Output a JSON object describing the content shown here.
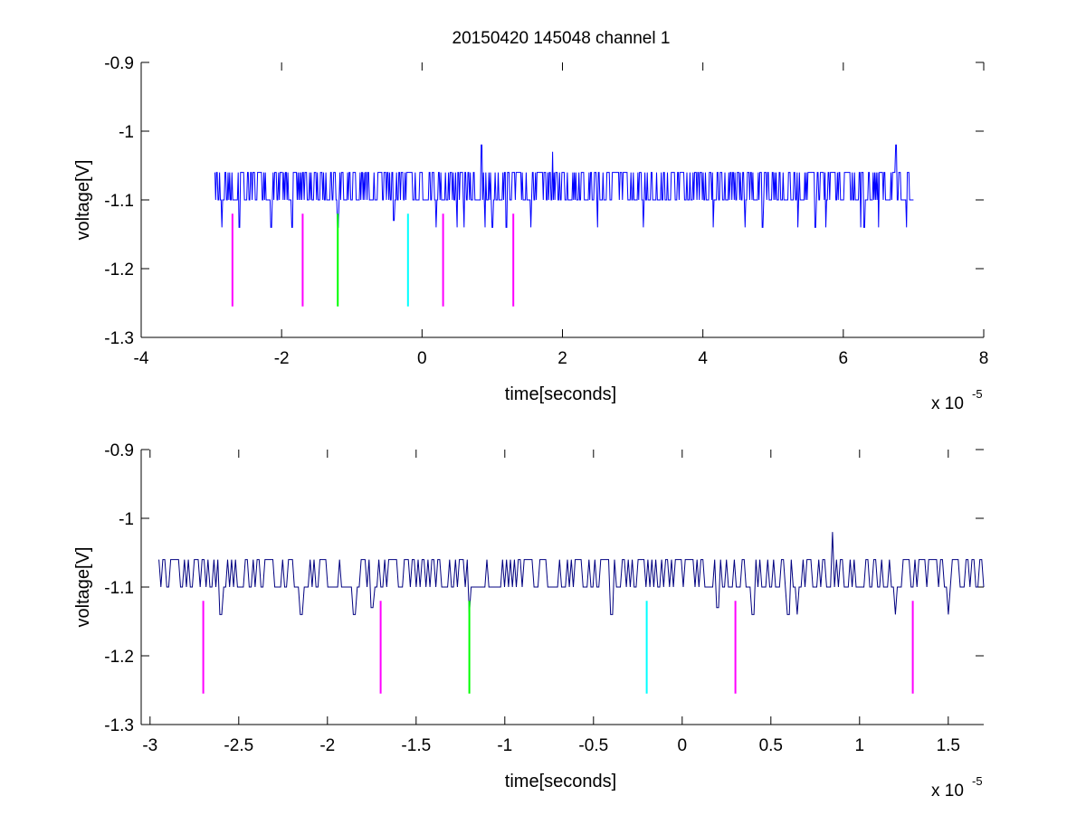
{
  "figure": {
    "title": "20150420 145048 channel 1"
  },
  "chart_data": [
    {
      "type": "line",
      "xlabel": "time[seconds]",
      "ylabel": "voltage[V]",
      "x_scale_label": "x 10",
      "x_scale_exponent": "-5",
      "xlim": [
        -4,
        8
      ],
      "ylim": [
        -1.3,
        -0.9
      ],
      "xticks": [
        -4,
        -2,
        0,
        2,
        4,
        6,
        8
      ],
      "xtick_labels": [
        "-4",
        "-2",
        "0",
        "2",
        "4",
        "6",
        "8"
      ],
      "yticks": [
        -1.3,
        -1.2,
        -1.1,
        -1.0,
        -0.9
      ],
      "ytick_labels": [
        "-1.3",
        "-1.2",
        "-1.1",
        "-1",
        "-0.9"
      ],
      "series": [
        {
          "color": "#0000ff",
          "x_range": [
            -2.95,
            7.0
          ],
          "baseline_levels": [
            -1.06,
            -1.1
          ],
          "dips": [
            {
              "x": -2.85,
              "y": -1.14
            },
            {
              "x": -2.6,
              "y": -1.14
            },
            {
              "x": -2.15,
              "y": -1.14
            },
            {
              "x": -1.85,
              "y": -1.14
            },
            {
              "x": -1.2,
              "y": -1.14
            },
            {
              "x": -0.4,
              "y": -1.13
            },
            {
              "x": 0.2,
              "y": -1.14
            },
            {
              "x": 0.5,
              "y": -1.14
            },
            {
              "x": 0.6,
              "y": -1.14
            },
            {
              "x": 0.9,
              "y": -1.14
            },
            {
              "x": 1.0,
              "y": -1.14
            },
            {
              "x": 1.2,
              "y": -1.14
            },
            {
              "x": 1.55,
              "y": -1.14
            },
            {
              "x": 2.5,
              "y": -1.14
            },
            {
              "x": 3.15,
              "y": -1.14
            },
            {
              "x": 4.15,
              "y": -1.14
            },
            {
              "x": 4.6,
              "y": -1.14
            },
            {
              "x": 4.85,
              "y": -1.14
            },
            {
              "x": 5.35,
              "y": -1.14
            },
            {
              "x": 5.6,
              "y": -1.14
            },
            {
              "x": 5.75,
              "y": -1.14
            },
            {
              "x": 6.25,
              "y": -1.14
            },
            {
              "x": 6.3,
              "y": -1.14
            },
            {
              "x": 6.5,
              "y": -1.14
            },
            {
              "x": 6.9,
              "y": -1.14
            }
          ],
          "peaks": [
            {
              "x": 0.85,
              "y": -1.02
            },
            {
              "x": 1.86,
              "y": -1.03
            },
            {
              "x": 6.75,
              "y": -1.02
            }
          ]
        }
      ],
      "markers": [
        {
          "x": -2.7,
          "y_top": -1.12,
          "y_bottom": -1.255,
          "color": "#ff00ff"
        },
        {
          "x": -1.7,
          "y_top": -1.12,
          "y_bottom": -1.255,
          "color": "#ff00ff"
        },
        {
          "x": -1.2,
          "y_top": -1.12,
          "y_bottom": -1.255,
          "color": "#00ff00"
        },
        {
          "x": -0.2,
          "y_top": -1.12,
          "y_bottom": -1.255,
          "color": "#00ffff"
        },
        {
          "x": 0.3,
          "y_top": -1.12,
          "y_bottom": -1.255,
          "color": "#ff00ff"
        },
        {
          "x": 1.3,
          "y_top": -1.12,
          "y_bottom": -1.255,
          "color": "#ff00ff"
        }
      ]
    },
    {
      "type": "line",
      "xlabel": "time[seconds]",
      "ylabel": "voltage[V]",
      "x_scale_label": "x 10",
      "x_scale_exponent": "-5",
      "xlim": [
        -3.05,
        1.7
      ],
      "ylim": [
        -1.3,
        -0.9
      ],
      "xticks": [
        -3,
        -2.5,
        -2,
        -1.5,
        -1,
        -0.5,
        0,
        0.5,
        1,
        1.5
      ],
      "xtick_labels": [
        "-3",
        "-2.5",
        "-2",
        "-1.5",
        "-1",
        "-0.5",
        "0",
        "0.5",
        "1",
        "1.5"
      ],
      "yticks": [
        -1.3,
        -1.2,
        -1.1,
        -1.0,
        -0.9
      ],
      "ytick_labels": [
        "-1.3",
        "-1.2",
        "-1.1",
        "-1",
        "-0.9"
      ],
      "series": [
        {
          "color": "#000080",
          "x_range": [
            -2.95,
            1.7
          ],
          "baseline_levels": [
            -1.06,
            -1.1
          ],
          "dips": [
            {
              "x": -2.6,
              "y": -1.14
            },
            {
              "x": -2.15,
              "y": -1.14
            },
            {
              "x": -1.85,
              "y": -1.14
            },
            {
              "x": -1.75,
              "y": -1.13
            },
            {
              "x": -1.2,
              "y": -1.14
            },
            {
              "x": -0.4,
              "y": -1.14
            },
            {
              "x": 0.2,
              "y": -1.13
            },
            {
              "x": 0.4,
              "y": -1.14
            },
            {
              "x": 0.6,
              "y": -1.14
            },
            {
              "x": 0.65,
              "y": -1.14
            },
            {
              "x": 1.2,
              "y": -1.14
            },
            {
              "x": 1.5,
              "y": -1.14
            }
          ],
          "peaks": [
            {
              "x": 0.85,
              "y": -1.02
            }
          ]
        }
      ],
      "markers": [
        {
          "x": -2.7,
          "y_top": -1.12,
          "y_bottom": -1.255,
          "color": "#ff00ff"
        },
        {
          "x": -1.7,
          "y_top": -1.12,
          "y_bottom": -1.255,
          "color": "#ff00ff"
        },
        {
          "x": -1.2,
          "y_top": -1.12,
          "y_bottom": -1.255,
          "color": "#00ff00"
        },
        {
          "x": -0.2,
          "y_top": -1.12,
          "y_bottom": -1.255,
          "color": "#00ffff"
        },
        {
          "x": 0.3,
          "y_top": -1.12,
          "y_bottom": -1.255,
          "color": "#ff00ff"
        },
        {
          "x": 1.3,
          "y_top": -1.12,
          "y_bottom": -1.255,
          "color": "#ff00ff"
        }
      ]
    }
  ]
}
